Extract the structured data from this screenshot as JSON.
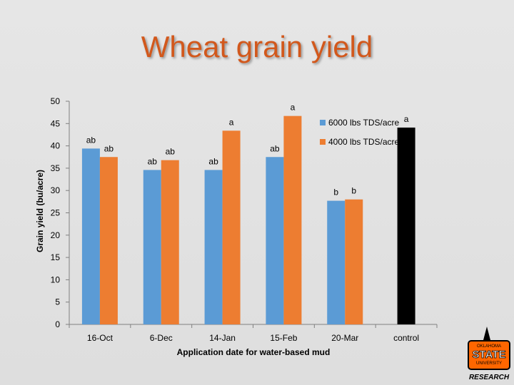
{
  "slide": {
    "title": "Wheat grain yield"
  },
  "chart_data": {
    "type": "bar",
    "categories": [
      "16-Oct",
      "6-Dec",
      "14-Jan",
      "15-Feb",
      "20-Mar",
      "control"
    ],
    "series": [
      {
        "name": "6000 lbs TDS/acre",
        "color": "#5b9bd5",
        "values": [
          39.4,
          34.6,
          34.6,
          37.5,
          27.7,
          null
        ],
        "labels": [
          "ab",
          "ab",
          "ab",
          "ab",
          "b",
          ""
        ]
      },
      {
        "name": "4000 lbs TDS/acre",
        "color": "#ed7d31",
        "values": [
          37.5,
          36.8,
          43.4,
          46.7,
          28.0,
          null
        ],
        "labels": [
          "ab",
          "ab",
          "a",
          "a",
          "b",
          ""
        ]
      },
      {
        "name": "",
        "color": "#000000",
        "values": [
          null,
          null,
          null,
          null,
          null,
          44.1
        ],
        "labels": [
          "",
          "",
          "",
          "",
          "",
          "a"
        ]
      }
    ],
    "xlabel": "Application date for water-based mud",
    "ylabel": "Grain yield (bu/acre)",
    "ylim": [
      0,
      50
    ],
    "yticks": [
      0,
      5,
      10,
      15,
      20,
      25,
      30,
      35,
      40,
      45,
      50
    ],
    "grid": false,
    "legend": "top-right"
  },
  "logo": {
    "line1": "OKLAHOMA",
    "line2": "STATE",
    "line3": "UNIVERSITY",
    "line4": "RESEARCH"
  }
}
